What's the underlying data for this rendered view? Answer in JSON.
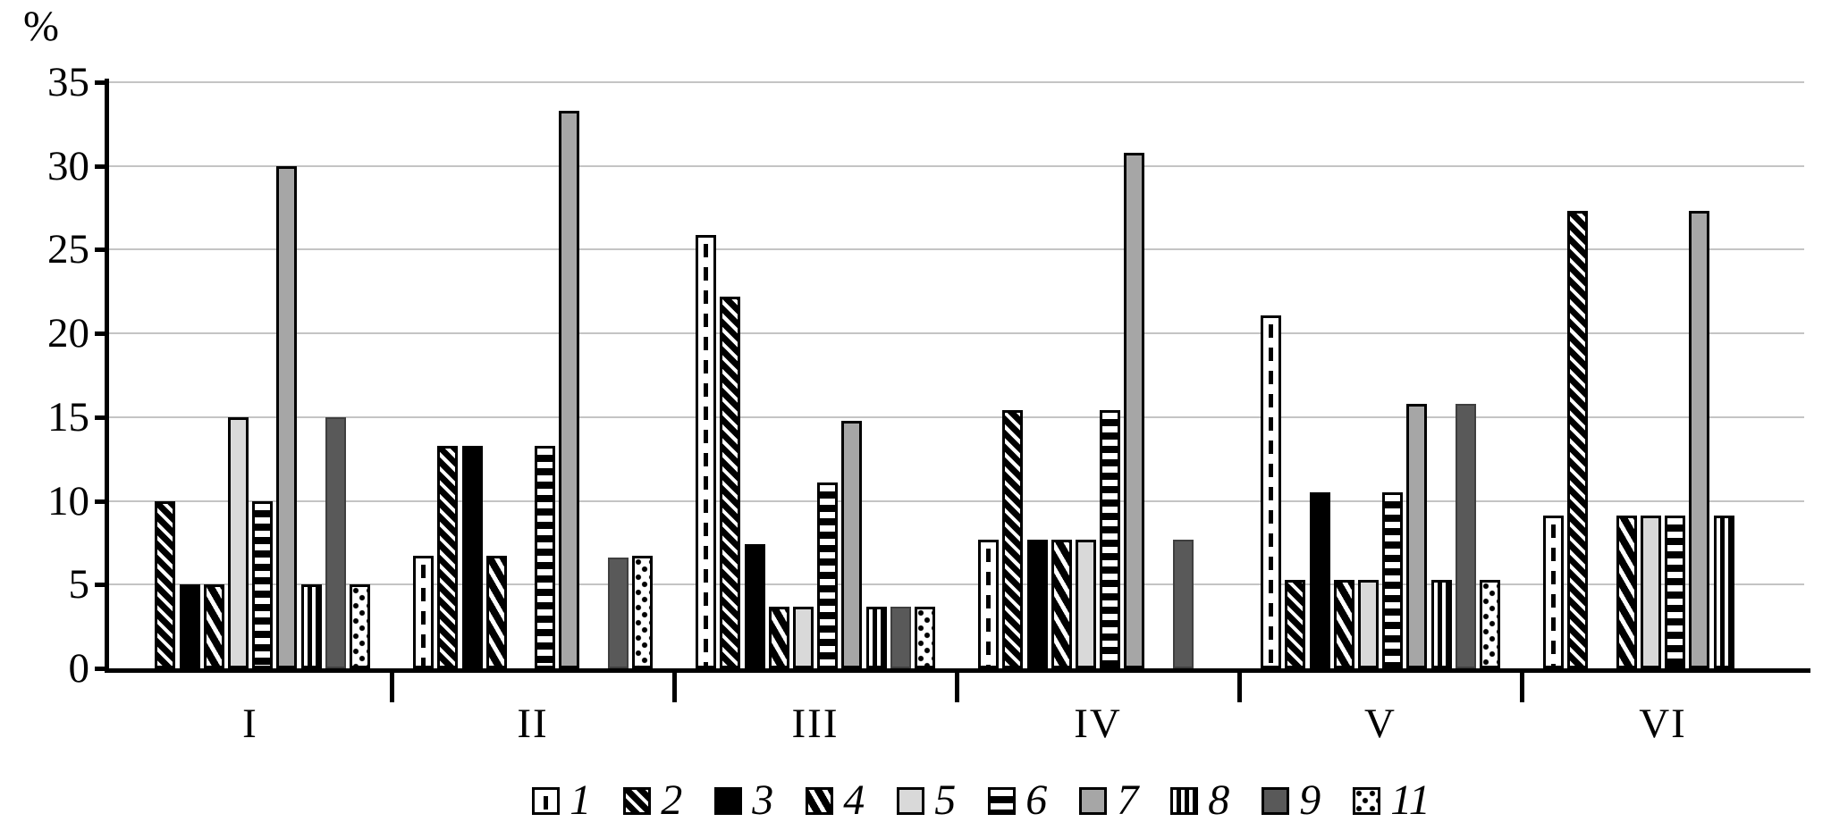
{
  "chart_data": {
    "type": "bar",
    "title": "",
    "ylabel": "%",
    "xlabel": "",
    "ylim": [
      0,
      35
    ],
    "ytick_step": 5,
    "yticks": [
      0,
      5,
      10,
      15,
      20,
      25,
      30,
      35
    ],
    "grid": true,
    "legend_position": "bottom",
    "categories": [
      "I",
      "II",
      "III",
      "IV",
      "V",
      "VI"
    ],
    "series": [
      {
        "name": "1",
        "pattern": "white-dashed-vertical-line",
        "values": [
          0,
          6.7,
          25.9,
          7.7,
          21.1,
          9.1
        ]
      },
      {
        "name": "2",
        "pattern": "diagonal-hatch-dense",
        "values": [
          10,
          13.3,
          22.2,
          15.4,
          5.3,
          27.3
        ]
      },
      {
        "name": "3",
        "pattern": "solid-black",
        "values": [
          5,
          13.3,
          7.4,
          7.7,
          10.5,
          0
        ]
      },
      {
        "name": "4",
        "pattern": "diagonal-hatch-wide",
        "values": [
          5,
          6.7,
          3.7,
          7.7,
          5.3,
          9.1
        ]
      },
      {
        "name": "5",
        "pattern": "light-gray",
        "color": "#d9d9d9",
        "values": [
          15,
          0,
          3.7,
          7.7,
          5.3,
          9.1
        ]
      },
      {
        "name": "6",
        "pattern": "horizontal-stripes",
        "values": [
          10,
          13.3,
          11.1,
          15.4,
          10.5,
          9.1
        ]
      },
      {
        "name": "7",
        "pattern": "medium-gray",
        "color": "#a6a6a6",
        "values": [
          30,
          33.3,
          14.8,
          30.8,
          15.8,
          27.3
        ]
      },
      {
        "name": "8",
        "pattern": "vertical-stripes",
        "values": [
          5,
          0,
          3.7,
          0,
          5.3,
          9.1
        ]
      },
      {
        "name": "9",
        "pattern": "dark-gray",
        "color": "#595959",
        "values": [
          15,
          6.6,
          3.7,
          7.7,
          15.8,
          0
        ]
      },
      {
        "name": "11",
        "pattern": "dotted",
        "values": [
          5,
          6.7,
          3.7,
          0,
          5.3,
          0
        ]
      }
    ]
  }
}
